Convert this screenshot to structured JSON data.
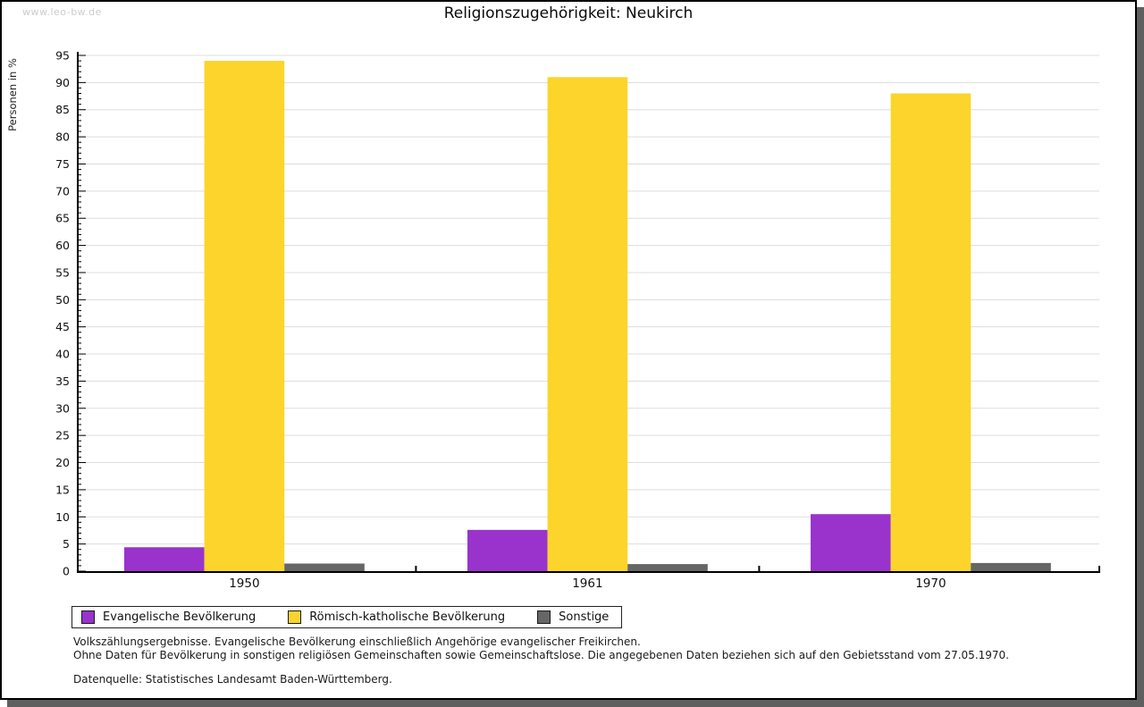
{
  "page": {
    "watermark": "www.leo-bw.de",
    "title": "Religionszugehörigkeit: Neukirch"
  },
  "chart_data": {
    "type": "bar",
    "title": "Religionszugehörigkeit: Neukirch",
    "xlabel": "",
    "ylabel": "Personen in %",
    "categories": [
      "1950",
      "1961",
      "1970"
    ],
    "series": [
      {
        "name": "Evangelische Bevölkerung",
        "color": "#9933cc",
        "values": [
          4.4,
          7.6,
          10.5
        ]
      },
      {
        "name": "Römisch-katholische Bevölkerung",
        "color": "#fcd42b",
        "values": [
          94.0,
          91.0,
          88.0
        ]
      },
      {
        "name": "Sonstige",
        "color": "#666666",
        "values": [
          1.4,
          1.3,
          1.5
        ]
      }
    ],
    "ylim": [
      0,
      95
    ],
    "ytick_step": 5,
    "minor_tick_step": 1,
    "grid": "horizontal-major",
    "gridline_color": "#dddddd",
    "axis_color": "#000000",
    "legend_position": "bottom-left"
  },
  "footnotes": {
    "line1": "Volkszählungsergebnisse. Evangelische Bevölkerung einschließlich Angehörige evangelischer Freikirchen.",
    "line2": "Ohne Daten für Bevölkerung in sonstigen religiösen Gemeinschaften sowie Gemeinschaftslose. Die angegebenen Daten beziehen sich auf den Gebietsstand vom 27.05.1970.",
    "line3": "Datenquelle: Statistisches Landesamt Baden-Württemberg."
  }
}
